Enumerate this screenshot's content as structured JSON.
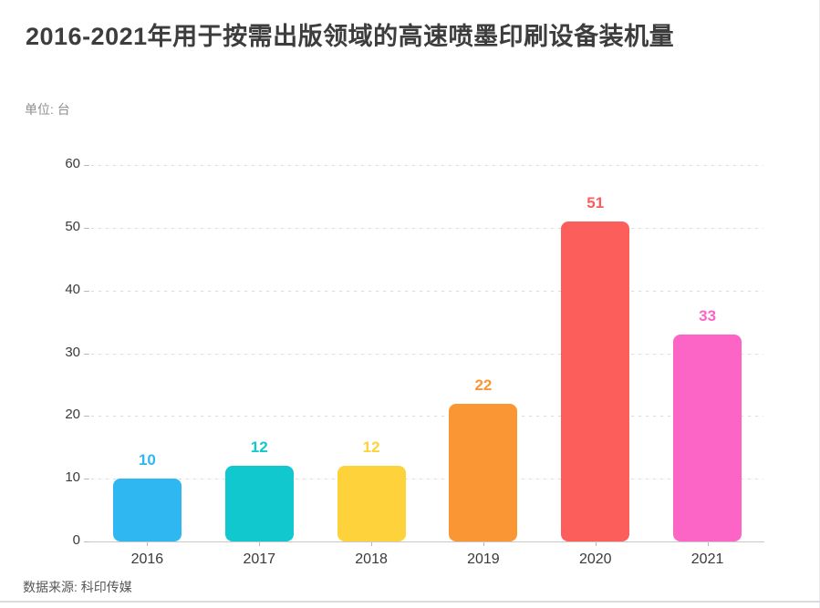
{
  "header": {
    "title": "2016-2021年用于按需出版领域的高速喷墨印刷设备装机量",
    "unit_label": "单位: 台"
  },
  "footer": {
    "source_label": "数据来源: 科印传媒"
  },
  "chart_data": {
    "type": "bar",
    "title": "2016-2021年用于按需出版领域的高速喷墨印刷设备装机量",
    "unit": "台",
    "categories": [
      "2016",
      "2017",
      "2018",
      "2019",
      "2020",
      "2021"
    ],
    "values": [
      10,
      12,
      12,
      22,
      51,
      33
    ],
    "bar_colors": [
      "#2EB7F0",
      "#10C8CE",
      "#FDD23A",
      "#FA9633",
      "#FB5E5B",
      "#FC64C5"
    ],
    "value_label_colors": [
      "#2EB7F0",
      "#10C8CE",
      "#FDD23A",
      "#FA9633",
      "#FB5E5B",
      "#FC64C5"
    ],
    "xlabel": "",
    "ylabel": "",
    "ylim": [
      0,
      60
    ],
    "yticks": [
      0,
      10,
      20,
      30,
      40,
      50,
      60
    ],
    "grid": "dotted-horizontal",
    "legend": "none",
    "source": "数据来源: 科印传媒",
    "axis_line_color": "#c9c9c9",
    "tick_color": "#b9b9b9",
    "gridline_color": "#dcdcdc",
    "axis_text_color": "#3a3a3a"
  }
}
